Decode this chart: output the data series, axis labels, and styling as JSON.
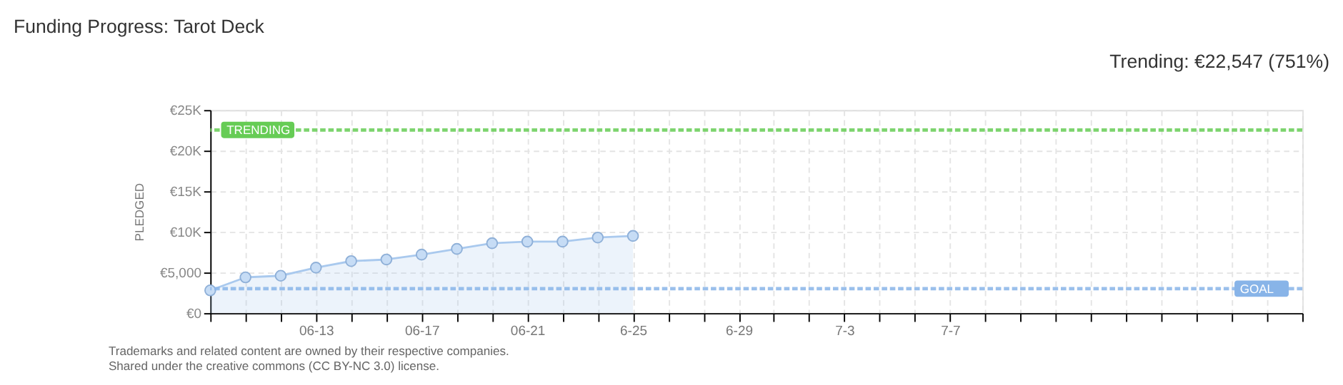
{
  "chart_data": {
    "type": "area",
    "title": "Funding Progress: Tarot Deck",
    "subtitle": "Trending: €22,547 (751%)",
    "ylabel": "PLEDGED",
    "categories": [
      null,
      null,
      null,
      "06-13",
      null,
      null,
      "06-17",
      null,
      null,
      "06-21",
      null,
      null,
      "6-25",
      null,
      null,
      "6-29",
      null,
      null,
      "7-3",
      null,
      null,
      "7-7",
      null,
      null,
      null,
      null,
      null,
      null,
      null,
      null,
      null,
      null
    ],
    "series": [
      {
        "color": "#a9c9ee",
        "values": [
          2800,
          4400,
          4600,
          5600,
          6400,
          6600,
          7200,
          7900,
          8600,
          8800,
          8800,
          9300,
          9500,
          null,
          null,
          null,
          null,
          null,
          null,
          null,
          null,
          null,
          null,
          null,
          null,
          null,
          null,
          null,
          null,
          null,
          null,
          null
        ]
      }
    ],
    "ylim": [
      0,
      25000
    ],
    "yticks": [
      {
        "value": 0,
        "label": "€0"
      },
      {
        "value": 5000,
        "label": "€5,000"
      },
      {
        "value": 10000,
        "label": "€10K"
      },
      {
        "value": 15000,
        "label": "€15K"
      },
      {
        "value": 20000,
        "label": "€20K"
      },
      {
        "value": 25000,
        "label": "€25K"
      }
    ],
    "ref_lines": [
      {
        "axis": "y",
        "value": 22547,
        "label": "TRENDING",
        "color": "#66cc55",
        "line_style": "dotted"
      },
      {
        "axis": "y",
        "value": 3000,
        "label": "GOAL",
        "color": "#88b4e8",
        "line_style": "dotted"
      }
    ],
    "grid": true,
    "marker": "circle",
    "annotations": [
      "Trademarks and related content are owned by their respective companies.",
      "Shared under the creative commons (CC BY-NC 3.0) license."
    ]
  }
}
